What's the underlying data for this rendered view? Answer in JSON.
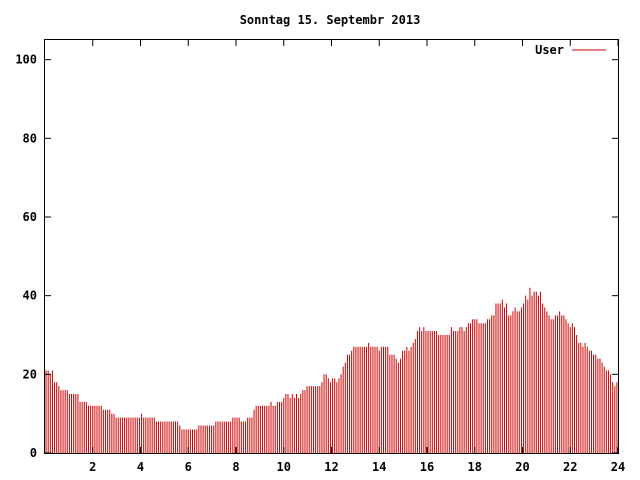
{
  "chart_data": {
    "type": "bar",
    "title": "Sonntag 15. Septembr 2013",
    "xlabel": "",
    "ylabel": "",
    "xlim": [
      0,
      24
    ],
    "ylim": [
      0,
      105
    ],
    "x_ticks": [
      2,
      4,
      6,
      8,
      10,
      12,
      14,
      16,
      18,
      20,
      22,
      24
    ],
    "y_ticks": [
      0,
      20,
      40,
      60,
      80,
      100
    ],
    "grid": false,
    "legend": "top-right",
    "bar_color": "#cc0000",
    "series": [
      {
        "name": "User",
        "values": [
          21,
          21,
          20,
          21,
          18,
          18,
          17,
          16,
          16,
          16,
          16,
          15,
          15,
          15,
          15,
          15,
          13,
          13,
          13,
          13,
          12,
          12,
          12,
          12,
          12,
          12,
          12,
          11,
          11,
          11,
          11,
          10,
          10,
          9,
          9,
          9,
          9,
          9,
          9,
          9,
          9,
          9,
          9,
          9,
          9,
          10,
          9,
          9,
          9,
          9,
          9,
          9,
          8,
          8,
          8,
          8,
          8,
          8,
          8,
          8,
          8,
          8,
          8,
          7,
          6,
          6,
          6,
          6,
          6,
          6,
          6,
          6,
          7,
          7,
          7,
          7,
          7,
          7,
          7,
          7,
          8,
          8,
          8,
          8,
          8,
          8,
          8,
          8,
          9,
          9,
          9,
          9,
          8,
          8,
          8,
          9,
          9,
          9,
          11,
          12,
          12,
          12,
          12,
          12,
          12,
          12,
          13,
          12,
          12,
          13,
          13,
          13,
          14,
          15,
          15,
          14,
          15,
          14,
          15,
          14,
          15,
          16,
          16,
          17,
          17,
          17,
          17,
          17,
          17,
          17,
          18,
          20,
          20,
          19,
          18,
          19,
          19,
          18,
          19,
          20,
          22,
          23,
          25,
          25,
          26,
          27,
          27,
          27,
          27,
          27,
          27,
          27,
          28,
          27,
          27,
          27,
          27,
          26,
          27,
          27,
          27,
          27,
          25,
          25,
          25,
          24,
          23,
          24,
          26,
          26,
          27,
          26,
          27,
          28,
          29,
          31,
          32,
          31,
          32,
          31,
          31,
          31,
          31,
          31,
          31,
          30,
          30,
          30,
          30,
          30,
          30,
          32,
          31,
          31,
          31,
          32,
          32,
          31,
          32,
          33,
          33,
          34,
          34,
          34,
          33,
          33,
          33,
          33,
          34,
          34,
          35,
          35,
          38,
          38,
          38,
          39,
          37,
          38,
          35,
          35,
          36,
          37,
          36,
          36,
          37,
          38,
          40,
          39,
          42,
          40,
          41,
          41,
          40,
          41,
          38,
          37,
          36,
          35,
          34,
          34,
          35,
          35,
          36,
          35,
          35,
          34,
          33,
          32,
          33,
          32,
          30,
          28,
          28,
          27,
          28,
          27,
          26,
          26,
          25,
          25,
          24,
          24,
          23,
          22,
          21,
          21,
          20,
          18,
          17,
          18
        ]
      }
    ]
  }
}
